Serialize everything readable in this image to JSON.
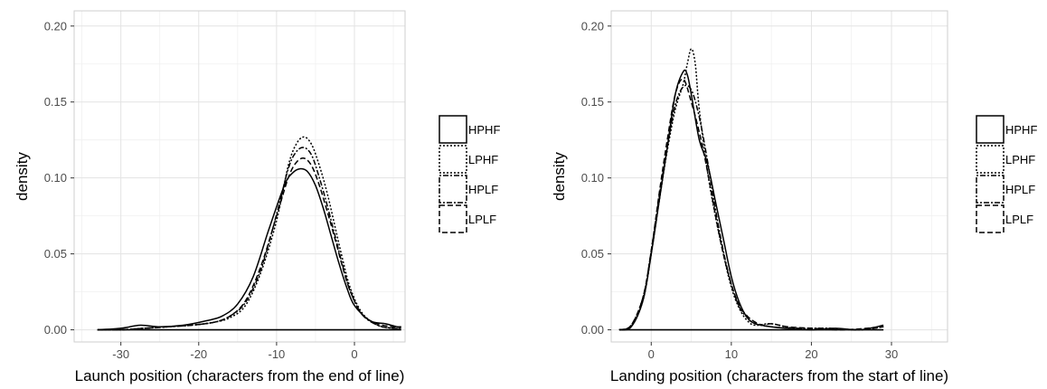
{
  "chart_data": [
    {
      "type": "line",
      "title": "",
      "xlabel": "Launch position (characters from the end of line)",
      "ylabel": "density",
      "xlim": [
        -36,
        6.5
      ],
      "ylim": [
        -0.008,
        0.21
      ],
      "xticks": [
        -30,
        -20,
        -10,
        0
      ],
      "yticks": [
        0.0,
        0.05,
        0.1,
        0.15,
        0.2
      ],
      "ytick_labels": [
        "0.00",
        "0.05",
        "0.10",
        "0.15",
        "0.20"
      ],
      "grid": true,
      "legend_position": "right",
      "series": [
        {
          "name": "HPHF",
          "dash": "solid",
          "x": [
            -33,
            -30,
            -27.5,
            -25,
            -22,
            -19,
            -17,
            -15,
            -13,
            -11,
            -9,
            -8,
            -7,
            -6,
            -5,
            -4,
            -3,
            -2,
            -1,
            0,
            2,
            4,
            5.5,
            6
          ],
          "y": [
            0,
            0.001,
            0.003,
            0.002,
            0.003,
            0.006,
            0.009,
            0.017,
            0.035,
            0.066,
            0.095,
            0.103,
            0.106,
            0.104,
            0.095,
            0.08,
            0.062,
            0.044,
            0.028,
            0.016,
            0.006,
            0.004,
            0.002,
            0.002
          ]
        },
        {
          "name": "LPHF",
          "dash": "dotted",
          "x": [
            -33,
            -30,
            -27,
            -24,
            -21,
            -18,
            -16,
            -14,
            -12,
            -10,
            -8.5,
            -7.5,
            -6.5,
            -5.5,
            -4.5,
            -3.5,
            -2.5,
            -1.5,
            -0.5,
            1,
            3,
            5,
            6
          ],
          "y": [
            0,
            0,
            0.001,
            0.002,
            0.003,
            0.005,
            0.008,
            0.016,
            0.038,
            0.072,
            0.108,
            0.122,
            0.127,
            0.122,
            0.108,
            0.09,
            0.068,
            0.046,
            0.027,
            0.011,
            0.003,
            0.001,
            0.001
          ]
        },
        {
          "name": "HPLF",
          "dash": "dotdash",
          "x": [
            -33,
            -30,
            -27,
            -24,
            -21,
            -18,
            -16,
            -14,
            -12,
            -10,
            -8.5,
            -7.5,
            -6.5,
            -5.5,
            -4.5,
            -3.5,
            -2.5,
            -1.5,
            -0.5,
            1,
            3,
            5,
            6
          ],
          "y": [
            0,
            0,
            0.001,
            0.002,
            0.003,
            0.005,
            0.009,
            0.018,
            0.04,
            0.076,
            0.106,
            0.117,
            0.12,
            0.115,
            0.1,
            0.082,
            0.062,
            0.042,
            0.025,
            0.01,
            0.003,
            0.001,
            0.001
          ]
        },
        {
          "name": "LPLF",
          "dash": "dashed",
          "x": [
            -33,
            -30,
            -27,
            -24,
            -21,
            -18,
            -16,
            -14,
            -12,
            -10,
            -8.5,
            -7.5,
            -6.5,
            -5.5,
            -4.5,
            -3.5,
            -2.5,
            -1.5,
            -0.5,
            1,
            3,
            5,
            6
          ],
          "y": [
            0,
            0,
            0.001,
            0.002,
            0.003,
            0.005,
            0.009,
            0.019,
            0.042,
            0.075,
            0.1,
            0.11,
            0.113,
            0.108,
            0.095,
            0.078,
            0.06,
            0.041,
            0.025,
            0.01,
            0.004,
            0.002,
            0.002
          ]
        }
      ]
    },
    {
      "type": "line",
      "title": "",
      "xlabel": "Landing position (characters from the start of line)",
      "ylabel": "density",
      "xlim": [
        -5,
        37
      ],
      "ylim": [
        -0.008,
        0.21
      ],
      "xticks": [
        0,
        10,
        20,
        30
      ],
      "yticks": [
        0.0,
        0.05,
        0.1,
        0.15,
        0.2
      ],
      "ytick_labels": [
        "0.00",
        "0.05",
        "0.10",
        "0.15",
        "0.20"
      ],
      "grid": true,
      "legend_position": "right",
      "series": [
        {
          "name": "HPHF",
          "dash": "solid",
          "x": [
            -4,
            -2.5,
            -1,
            0,
            1,
            2,
            3,
            4,
            4.5,
            5,
            6,
            7,
            8,
            9,
            10,
            11,
            12,
            13,
            15,
            17,
            20,
            23,
            26,
            29
          ],
          "y": [
            0,
            0.002,
            0.02,
            0.05,
            0.085,
            0.12,
            0.155,
            0.17,
            0.168,
            0.155,
            0.125,
            0.11,
            0.085,
            0.06,
            0.035,
            0.018,
            0.008,
            0.004,
            0.002,
            0.001,
            0,
            0.001,
            0,
            0.003
          ]
        },
        {
          "name": "LPHF",
          "dash": "dotted",
          "x": [
            -4,
            -2.5,
            -1,
            0,
            1,
            2,
            3,
            4,
            4.5,
            5,
            5.5,
            6,
            7,
            8,
            9,
            10,
            11,
            12,
            13,
            15,
            18,
            22,
            26,
            29
          ],
          "y": [
            0,
            0.002,
            0.02,
            0.05,
            0.085,
            0.118,
            0.145,
            0.162,
            0.175,
            0.185,
            0.175,
            0.145,
            0.105,
            0.075,
            0.05,
            0.028,
            0.014,
            0.006,
            0.003,
            0.004,
            0.001,
            0.001,
            0,
            0.002
          ]
        },
        {
          "name": "HPLF",
          "dash": "dotdash",
          "x": [
            -4,
            -2.5,
            -1,
            0,
            1,
            2,
            3,
            4,
            5,
            6,
            7,
            8,
            9,
            10,
            11,
            12,
            13,
            15,
            18,
            22,
            26,
            29
          ],
          "y": [
            0,
            0.003,
            0.022,
            0.052,
            0.088,
            0.12,
            0.148,
            0.16,
            0.158,
            0.14,
            0.112,
            0.08,
            0.052,
            0.03,
            0.015,
            0.008,
            0.004,
            0.002,
            0.001,
            0.001,
            0,
            0.002
          ]
        },
        {
          "name": "LPLF",
          "dash": "dashed",
          "x": [
            -4,
            -2.5,
            -1,
            0,
            1,
            2,
            3,
            4,
            5,
            6,
            7,
            8,
            9,
            10,
            11,
            12,
            13,
            14,
            15,
            17,
            20,
            24,
            29
          ],
          "y": [
            0,
            0.003,
            0.022,
            0.052,
            0.09,
            0.125,
            0.155,
            0.165,
            0.15,
            0.13,
            0.105,
            0.076,
            0.05,
            0.03,
            0.016,
            0.009,
            0.005,
            0.003,
            0.004,
            0.002,
            0.001,
            0,
            0.002
          ]
        }
      ]
    }
  ]
}
